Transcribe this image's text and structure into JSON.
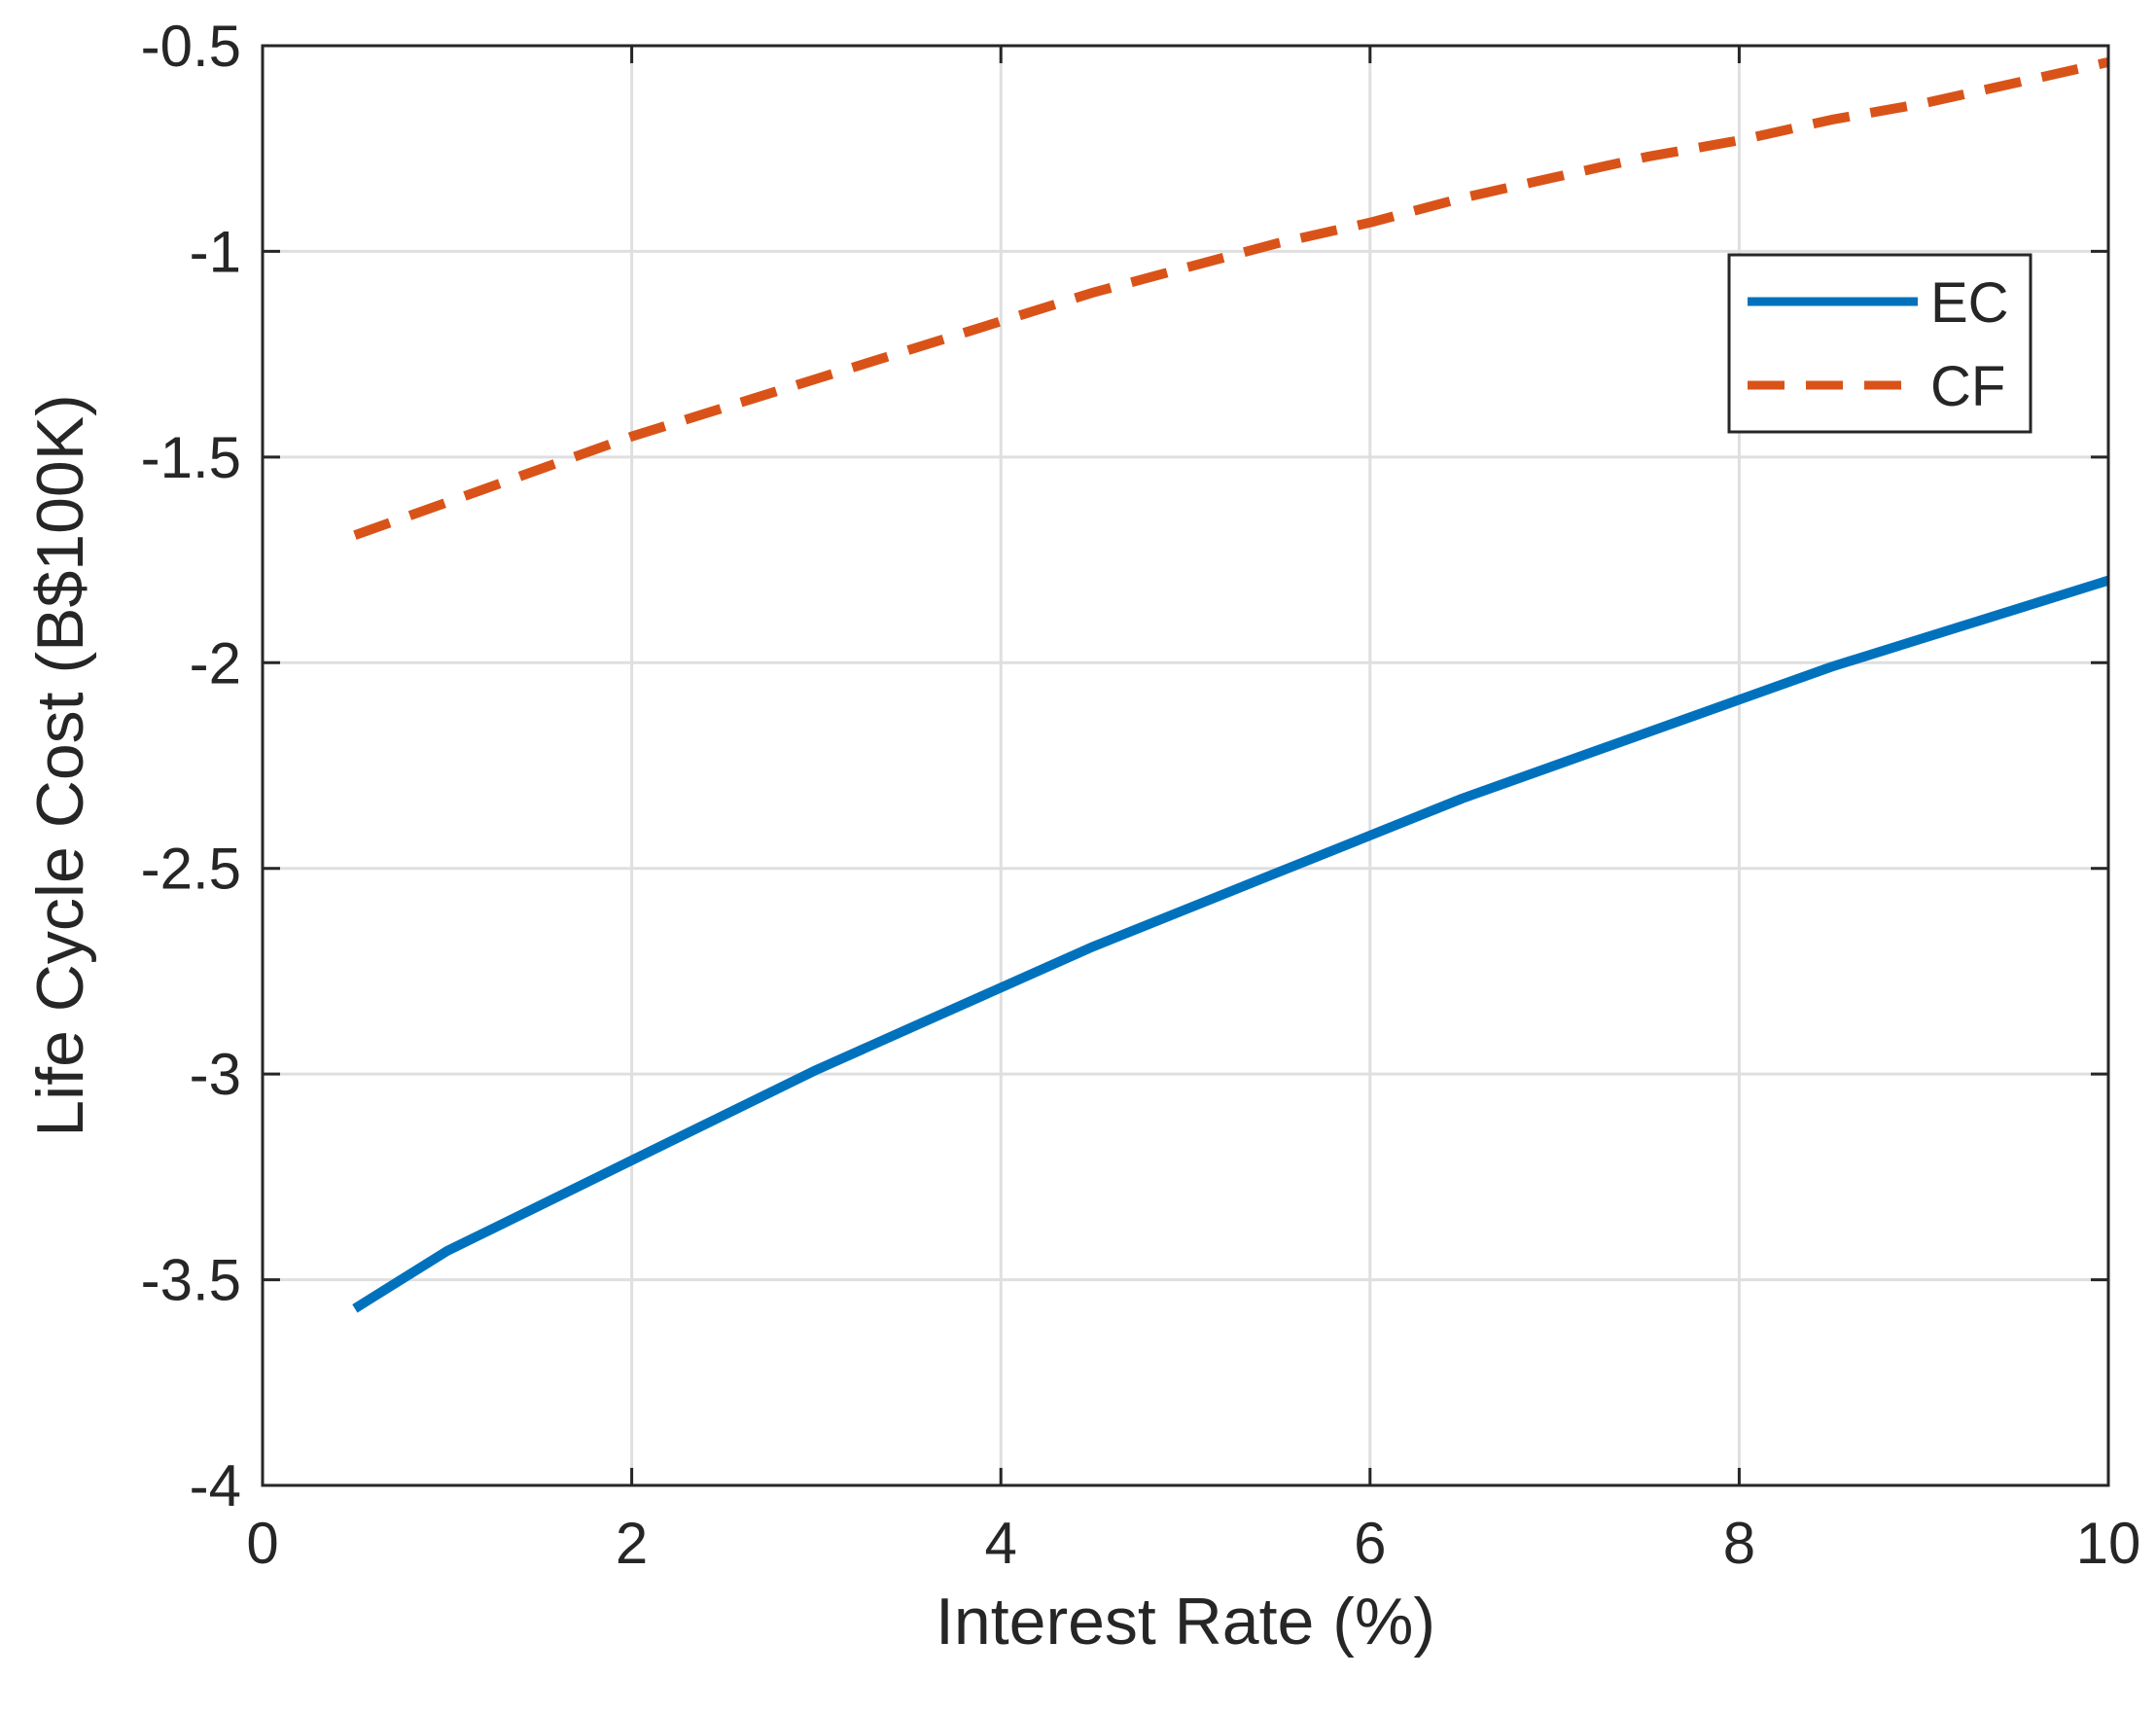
{
  "chart_data": {
    "type": "line",
    "title": "",
    "xlabel": "Interest Rate (%)",
    "ylabel": "Life Cycle Cost (B$100K)",
    "xlim": [
      0,
      10
    ],
    "ylim": [
      -4,
      -0.5
    ],
    "xticks": [
      0,
      2,
      4,
      6,
      8,
      10
    ],
    "xtick_labels": [
      "0",
      "2",
      "4",
      "6",
      "8",
      "10"
    ],
    "yticks": [
      -4,
      -3.5,
      -3,
      -2.5,
      -2,
      -1.5,
      -1,
      -0.5
    ],
    "ytick_labels": [
      "-4",
      "-3.5",
      "-3",
      "-2.5",
      "-2",
      "-1.5",
      "-1",
      "-0.5"
    ],
    "grid": true,
    "legend_position": "top-right",
    "x": [
      0.5,
      1,
      1.5,
      2,
      2.5,
      3,
      3.5,
      4,
      4.5,
      5,
      5.5,
      6,
      6.5,
      7,
      7.5,
      8,
      8.5,
      9,
      9.5,
      10
    ],
    "series": [
      {
        "name": "EC",
        "style": "solid",
        "color": "#0072BD",
        "values": [
          -3.57,
          -3.43,
          -3.32,
          -3.21,
          -3.1,
          -2.99,
          -2.89,
          -2.79,
          -2.69,
          -2.6,
          -2.51,
          -2.42,
          -2.33,
          -2.25,
          -2.17,
          -2.09,
          -2.01,
          -1.94,
          -1.87,
          -1.8
        ]
      },
      {
        "name": "CF",
        "style": "dashed",
        "color": "#D95319",
        "values": [
          -1.69,
          -1.61,
          -1.53,
          -1.45,
          -1.38,
          -1.31,
          -1.24,
          -1.17,
          -1.1,
          -1.04,
          -0.98,
          -0.93,
          -0.87,
          -0.82,
          -0.77,
          -0.73,
          -0.68,
          -0.64,
          -0.59,
          -0.54
        ]
      }
    ]
  }
}
